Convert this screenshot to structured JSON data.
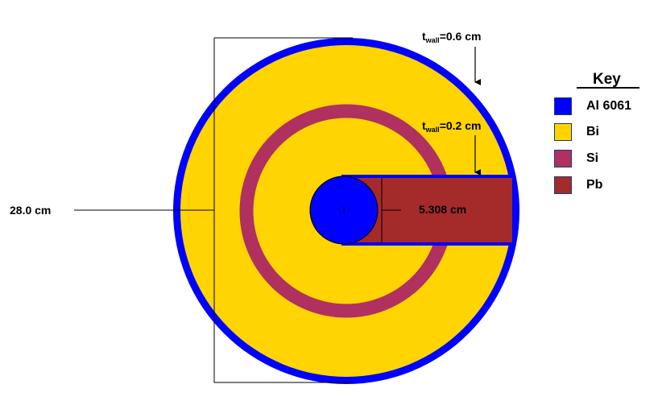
{
  "labels": {
    "diameter": "28.0 cm",
    "outer_wall_t": "t",
    "outer_wall_sub": "wall",
    "outer_wall_val": "=0.6 cm",
    "inner_wall_t": "t",
    "inner_wall_sub": "wall",
    "inner_wall_val": "=0.2 cm",
    "channel_length": "5.308 cm"
  },
  "key": {
    "title": "Key",
    "items": [
      {
        "label": "Al 6061",
        "color": "#0000ff"
      },
      {
        "label": "Bi",
        "color": "#ffd400"
      },
      {
        "label": "Si",
        "color": "#b03060"
      },
      {
        "label": "Pb",
        "color": "#a52a2a"
      }
    ]
  },
  "colors": {
    "aluminum": "#0000ff",
    "bismuth": "#ffd400",
    "silicon": "#b03060",
    "lead": "#a52a2a"
  }
}
